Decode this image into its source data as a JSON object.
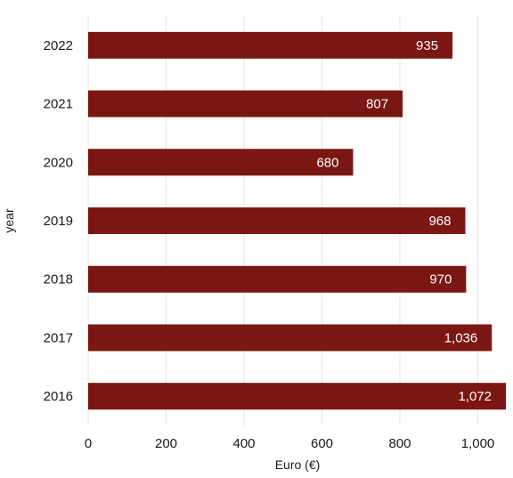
{
  "chart_data": {
    "type": "bar",
    "orientation": "horizontal",
    "categories": [
      "2022",
      "2021",
      "2020",
      "2019",
      "2018",
      "2017",
      "2016"
    ],
    "values": [
      935,
      807,
      680,
      968,
      970,
      1036,
      1072
    ],
    "value_labels": [
      "935",
      "807",
      "680",
      "968",
      "970",
      "1,036",
      "1,072"
    ],
    "xlabel": "Euro (€)",
    "ylabel": "year",
    "xlim": [
      0,
      1072
    ],
    "xticks": [
      0,
      200,
      400,
      600,
      800,
      1000
    ],
    "xtick_labels": [
      "0",
      "200",
      "400",
      "600",
      "800",
      "1,000"
    ],
    "grid": true,
    "bar_color": "#7b1712"
  }
}
